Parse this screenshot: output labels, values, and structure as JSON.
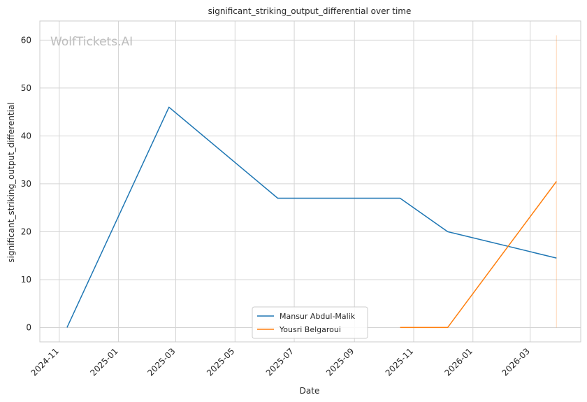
{
  "chart_data": {
    "type": "line",
    "title": "significant_striking_output_differential over time",
    "xlabel": "Date",
    "ylabel": "significant_striking_output_differential",
    "watermark": "WolfTickets.AI",
    "x_ticks": [
      "2024-11",
      "2025-01",
      "2025-03",
      "2025-05",
      "2025-07",
      "2025-09",
      "2025-11",
      "2026-01",
      "2026-03"
    ],
    "y_ticks": [
      0,
      10,
      20,
      30,
      40,
      50,
      60
    ],
    "xlim": [
      "2024-10-12",
      "2026-04-22"
    ],
    "ylim": [
      -3,
      64
    ],
    "grid": true,
    "legend_position": "lower-center",
    "series": [
      {
        "name": "Mansur Abdul-Malik",
        "color": "#1f77b4",
        "points": [
          {
            "x": "2024-11-09",
            "y": 0
          },
          {
            "x": "2025-02-22",
            "y": 46
          },
          {
            "x": "2025-06-14",
            "y": 27
          },
          {
            "x": "2025-10-18",
            "y": 27
          },
          {
            "x": "2025-12-06",
            "y": 20
          },
          {
            "x": "2026-03-28",
            "y": 14.5
          }
        ]
      },
      {
        "name": "Yousri Belgaroui",
        "color": "#ff7f0e",
        "points": [
          {
            "x": "2025-10-18",
            "y": 0
          },
          {
            "x": "2025-12-06",
            "y": 0
          },
          {
            "x": "2026-03-28",
            "y": 30.5
          }
        ]
      }
    ],
    "reference_line": {
      "x": "2026-03-28",
      "y_range": [
        0,
        61
      ],
      "color": "#ff7f0e"
    }
  }
}
